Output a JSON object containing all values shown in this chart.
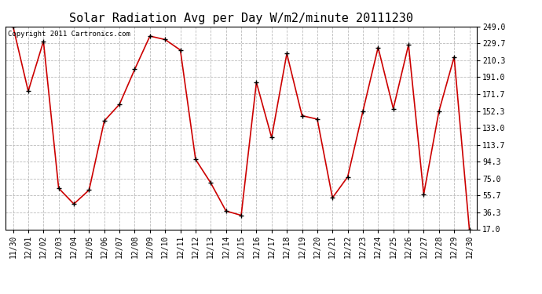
{
  "title": "Solar Radiation Avg per Day W/m2/minute 20111230",
  "copyright_text": "Copyright 2011 Cartronics.com",
  "dates": [
    "11/30",
    "12/01",
    "12/02",
    "12/03",
    "12/04",
    "12/05",
    "12/06",
    "12/07",
    "12/08",
    "12/09",
    "12/10",
    "12/11",
    "12/12",
    "12/13",
    "12/14",
    "12/15",
    "12/16",
    "12/17",
    "12/18",
    "12/19",
    "12/20",
    "12/21",
    "12/22",
    "12/23",
    "12/24",
    "12/25",
    "12/26",
    "12/27",
    "12/28",
    "12/29",
    "12/30"
  ],
  "values": [
    249.0,
    175.0,
    232.0,
    64.0,
    46.0,
    62.0,
    141.0,
    160.0,
    200.0,
    238.0,
    234.0,
    222.0,
    97.0,
    70.0,
    38.0,
    33.0,
    185.0,
    122.0,
    218.0,
    147.0,
    143.0,
    53.0,
    77.0,
    152.0,
    225.0,
    155.0,
    228.0,
    57.0,
    152.0,
    214.0,
    17.0
  ],
  "line_color": "#cc0000",
  "marker": "+",
  "marker_color": "#000000",
  "background_color": "#ffffff",
  "grid_color": "#bbbbbb",
  "yticks": [
    17.0,
    36.3,
    55.7,
    75.0,
    94.3,
    113.7,
    133.0,
    152.3,
    171.7,
    191.0,
    210.3,
    229.7,
    249.0
  ],
  "ylim": [
    17.0,
    249.0
  ],
  "title_fontsize": 11,
  "tick_fontsize": 7,
  "copyright_fontsize": 6.5
}
